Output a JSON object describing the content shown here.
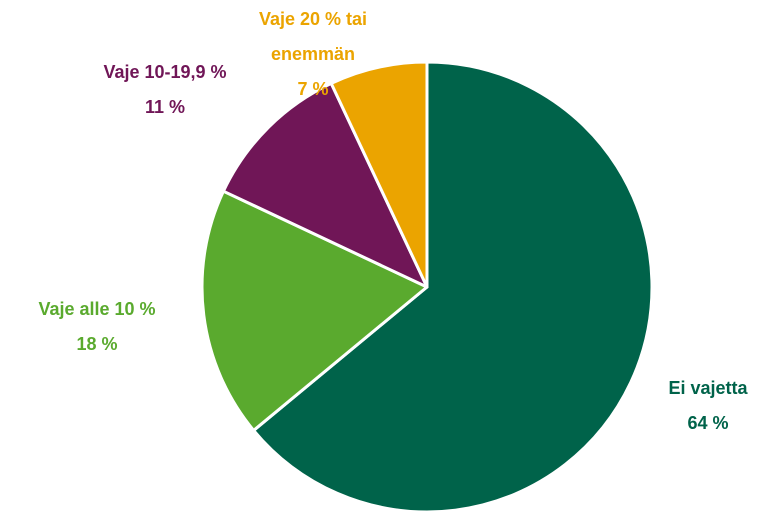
{
  "chart_data": {
    "type": "pie",
    "categories": [
      "Ei vajetta",
      "Vaje alle 10 %",
      "Vaje 10-19,9 %",
      "Vaje 20 % tai enemmän"
    ],
    "values": [
      64,
      18,
      11,
      7
    ],
    "value_labels": [
      "64 %",
      "18 %",
      "11 %",
      "7 %"
    ],
    "colors": [
      "#00634a",
      "#5aaa2e",
      "#701657",
      "#eba400"
    ],
    "start_angle": 90,
    "direction": "clockwise"
  }
}
